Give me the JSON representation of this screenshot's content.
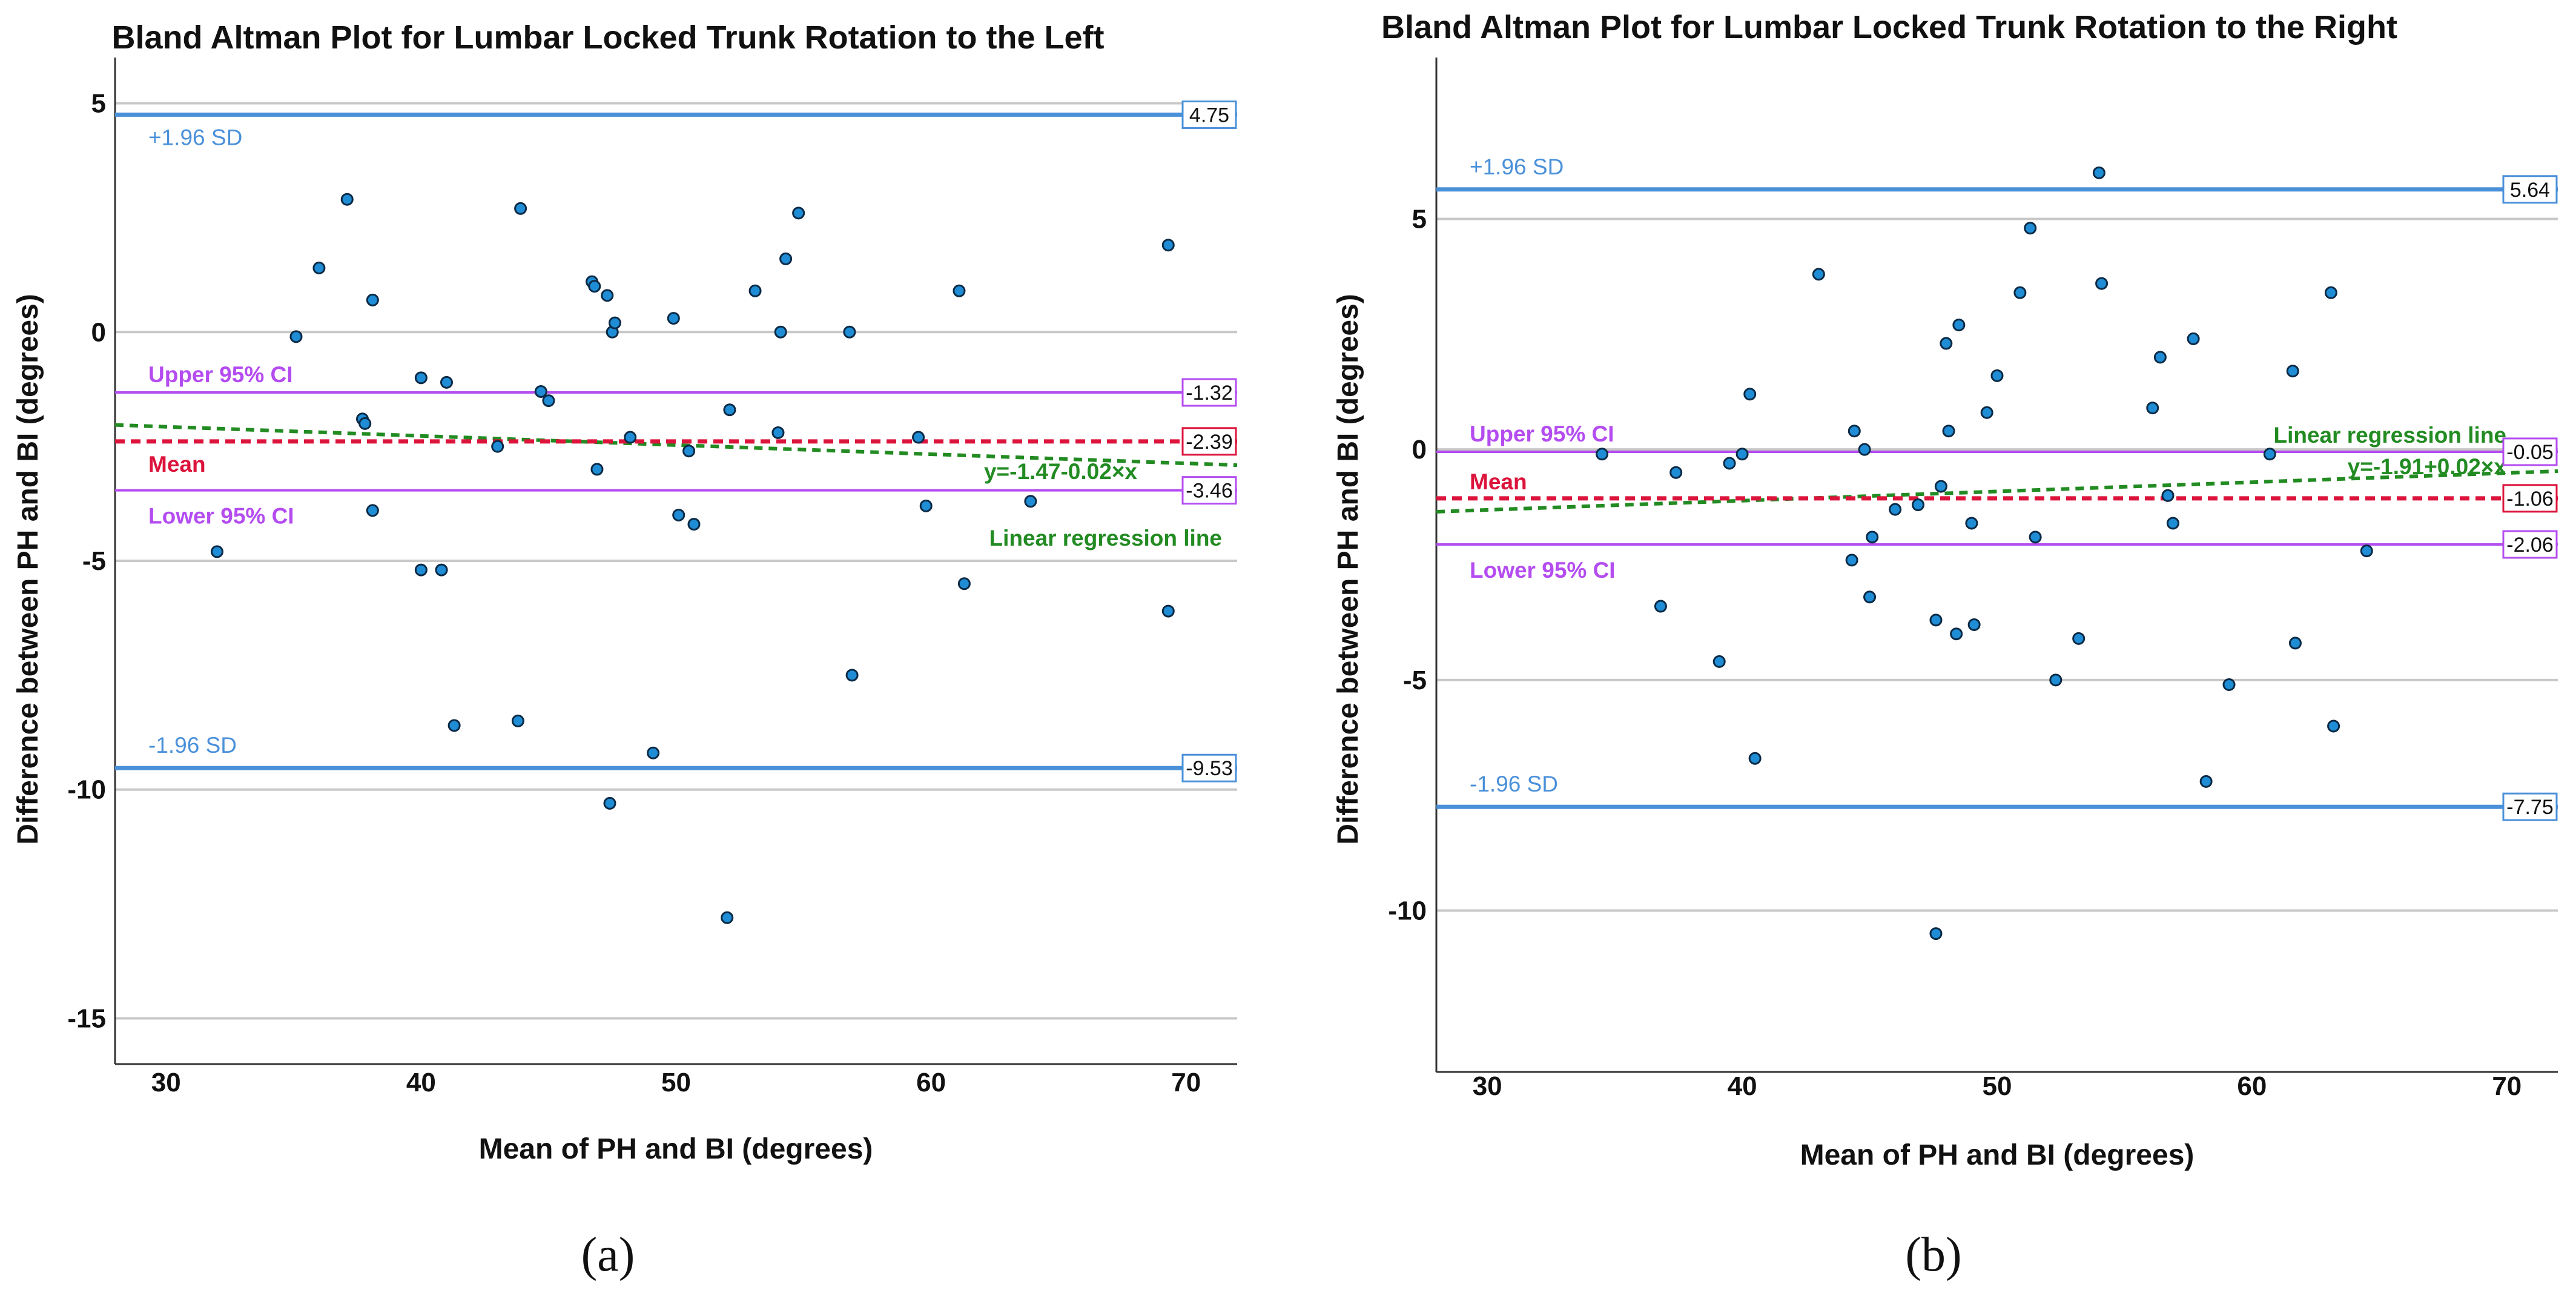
{
  "figure_labels": [
    "(a)",
    "(b)"
  ],
  "colors": {
    "sd_line": "#4a90d9",
    "mean_line": "#dc143c",
    "ci_line": "#b44cf0",
    "regression": "#228b22",
    "point_fill": "#1f8dd6",
    "grid": "#c8c8c8"
  },
  "chart_data": [
    {
      "type": "scatter",
      "title": "Bland Altman Plot for Lumbar Locked Trunk Rotation to the Left",
      "xlabel": "Mean of PH and BI (degrees)",
      "ylabel": "Difference between PH and BI (degrees)",
      "xlim": [
        28,
        72
      ],
      "ylim": [
        -16,
        6
      ],
      "xticks": [
        30,
        40,
        50,
        60,
        70
      ],
      "yticks": [
        5,
        0,
        -5,
        -10,
        -15
      ],
      "lines": {
        "upper_sd": {
          "label": "+1.96 SD",
          "value": 4.75,
          "value_label": "4.75"
        },
        "upper_ci": {
          "label": "Upper 95% CI",
          "value": -1.32,
          "value_label": "-1.32"
        },
        "mean": {
          "label": "Mean",
          "value": -2.39,
          "value_label": "-2.39"
        },
        "lower_ci": {
          "label": "Lower 95% CI",
          "value": -3.46,
          "value_label": "-3.46"
        },
        "lower_sd": {
          "label": "-1.96 SD",
          "value": -9.53,
          "value_label": "-9.53"
        }
      },
      "regression": {
        "label": "Linear regression line",
        "equation": "y=-1.47-0.02×x",
        "intercept": -1.47,
        "slope": -0.02
      },
      "points": [
        [
          32,
          -4.8
        ],
        [
          35.1,
          -0.1
        ],
        [
          36,
          1.4
        ],
        [
          37.1,
          2.9
        ],
        [
          37.7,
          -1.9
        ],
        [
          37.8,
          -2.0
        ],
        [
          38.1,
          -3.9
        ],
        [
          38.1,
          0.7
        ],
        [
          40,
          -5.2
        ],
        [
          40,
          -1.0
        ],
        [
          40.8,
          -5.2
        ],
        [
          41,
          -1.1
        ],
        [
          41.3,
          -8.6
        ],
        [
          43,
          -2.5
        ],
        [
          43.8,
          -8.5
        ],
        [
          43.9,
          2.7
        ],
        [
          44.7,
          -1.3
        ],
        [
          45,
          -1.5
        ],
        [
          46.7,
          1.1
        ],
        [
          46.8,
          1.0
        ],
        [
          46.9,
          -3.0
        ],
        [
          47.3,
          0.8
        ],
        [
          47.4,
          -10.3
        ],
        [
          47.5,
          0.0
        ],
        [
          47.6,
          0.2
        ],
        [
          48.2,
          -2.3
        ],
        [
          49.1,
          -9.2
        ],
        [
          49.9,
          0.3
        ],
        [
          50.1,
          -4.0
        ],
        [
          50.5,
          -2.6
        ],
        [
          50.7,
          -4.2
        ],
        [
          52,
          -12.8
        ],
        [
          52.1,
          -1.7
        ],
        [
          53.1,
          0.9
        ],
        [
          54,
          -2.2
        ],
        [
          54.1,
          0.0
        ],
        [
          54.3,
          1.6
        ],
        [
          54.8,
          2.6
        ],
        [
          56.8,
          0.0
        ],
        [
          56.9,
          -7.5
        ],
        [
          59.5,
          -2.3
        ],
        [
          59.8,
          -3.8
        ],
        [
          61.1,
          0.9
        ],
        [
          61.3,
          -5.5
        ],
        [
          63.9,
          -3.7
        ],
        [
          69.3,
          1.9
        ],
        [
          69.3,
          -6.1
        ]
      ]
    },
    {
      "type": "scatter",
      "title": "Bland Altman Plot for Lumbar Locked Trunk Rotation to the Right",
      "xlabel": "Mean of PH and BI (degrees)",
      "ylabel": "Difference between PH and BI (degrees)",
      "xlim": [
        28,
        72
      ],
      "ylim": [
        -13.5,
        8.5
      ],
      "xticks": [
        30,
        40,
        50,
        60,
        70
      ],
      "yticks": [
        5,
        0,
        -5,
        -10
      ],
      "lines": {
        "upper_sd": {
          "label": "+1.96 SD",
          "value": 5.64,
          "value_label": "5.64"
        },
        "upper_ci": {
          "label": "Upper 95% CI",
          "value": -0.05,
          "value_label": "-0.05"
        },
        "mean": {
          "label": "Mean",
          "value": -1.06,
          "value_label": "-1.06"
        },
        "lower_ci": {
          "label": "Lower 95% CI",
          "value": -2.06,
          "value_label": "-2.06"
        },
        "lower_sd": {
          "label": "-1.96 SD",
          "value": -7.75,
          "value_label": "-7.75"
        }
      },
      "regression": {
        "label": "Linear regression line",
        "equation": "y=-1.91+0.02×x",
        "intercept": -1.91,
        "slope": 0.02
      },
      "points": [
        [
          34.5,
          -0.1
        ],
        [
          36.8,
          -3.4
        ],
        [
          37.4,
          -0.5
        ],
        [
          39.1,
          -4.6
        ],
        [
          39.5,
          -0.3
        ],
        [
          40,
          -0.1
        ],
        [
          40.3,
          1.2
        ],
        [
          40.5,
          -6.7
        ],
        [
          43,
          3.8
        ],
        [
          44.3,
          -2.4
        ],
        [
          44.4,
          0.4
        ],
        [
          44.8,
          0.0
        ],
        [
          45,
          -3.2
        ],
        [
          45.1,
          -1.9
        ],
        [
          46,
          -1.3
        ],
        [
          46.9,
          -1.2
        ],
        [
          47.6,
          -3.7
        ],
        [
          47.6,
          -10.5
        ],
        [
          47.8,
          -0.8
        ],
        [
          48,
          2.3
        ],
        [
          48.1,
          0.4
        ],
        [
          48.4,
          -4.0
        ],
        [
          48.5,
          2.7
        ],
        [
          49,
          -1.6
        ],
        [
          49.1,
          -3.8
        ],
        [
          49.6,
          0.8
        ],
        [
          50,
          1.6
        ],
        [
          50.9,
          3.4
        ],
        [
          51.3,
          4.8
        ],
        [
          51.5,
          -1.9
        ],
        [
          52.3,
          -5.0
        ],
        [
          53.2,
          -4.1
        ],
        [
          54,
          6.0
        ],
        [
          54.1,
          3.6
        ],
        [
          56.1,
          0.9
        ],
        [
          56.4,
          2.0
        ],
        [
          56.7,
          -1.0
        ],
        [
          56.9,
          -1.6
        ],
        [
          57.7,
          2.4
        ],
        [
          58.2,
          -7.2
        ],
        [
          59.1,
          -5.1
        ],
        [
          60.7,
          -0.1
        ],
        [
          61.6,
          1.7
        ],
        [
          61.7,
          -4.2
        ],
        [
          63.1,
          3.4
        ],
        [
          63.2,
          -6.0
        ],
        [
          64.5,
          -2.2
        ]
      ]
    }
  ]
}
